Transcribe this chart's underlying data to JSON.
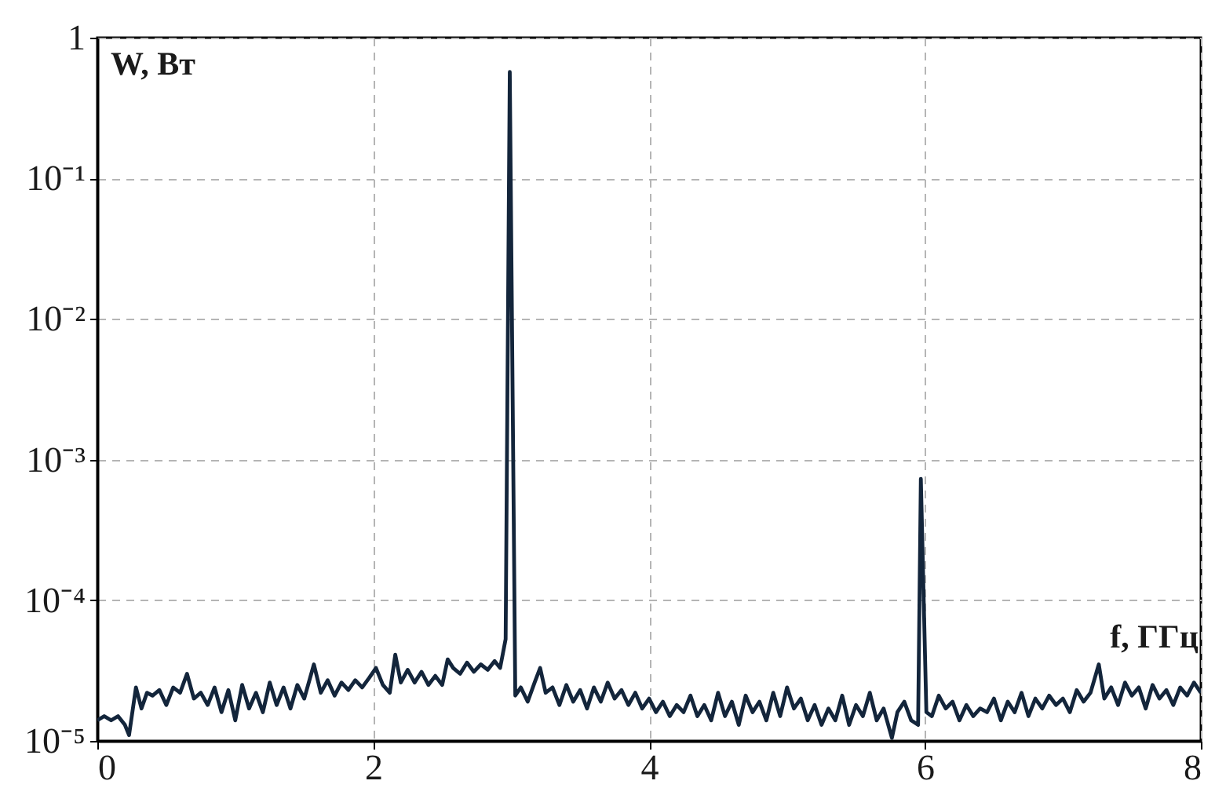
{
  "chart_data": {
    "type": "line",
    "xlabel": "f, ГГц",
    "ylabel": "W, Вт",
    "x": [
      0.0,
      0.05,
      0.1,
      0.15,
      0.2,
      0.23,
      0.28,
      0.32,
      0.36,
      0.4,
      0.45,
      0.5,
      0.55,
      0.6,
      0.65,
      0.7,
      0.75,
      0.8,
      0.85,
      0.9,
      0.95,
      1.0,
      1.05,
      1.1,
      1.15,
      1.2,
      1.25,
      1.3,
      1.35,
      1.4,
      1.45,
      1.5,
      1.57,
      1.62,
      1.67,
      1.72,
      1.77,
      1.82,
      1.87,
      1.92,
      1.97,
      2.02,
      2.07,
      2.12,
      2.16,
      2.2,
      2.25,
      2.3,
      2.35,
      2.4,
      2.45,
      2.5,
      2.54,
      2.58,
      2.63,
      2.68,
      2.73,
      2.78,
      2.83,
      2.88,
      2.92,
      2.96,
      2.99,
      3.03,
      3.07,
      3.12,
      3.17,
      3.21,
      3.25,
      3.3,
      3.35,
      3.4,
      3.45,
      3.5,
      3.55,
      3.6,
      3.65,
      3.7,
      3.75,
      3.8,
      3.85,
      3.9,
      3.95,
      4.0,
      4.05,
      4.1,
      4.15,
      4.2,
      4.25,
      4.3,
      4.35,
      4.4,
      4.45,
      4.5,
      4.55,
      4.6,
      4.65,
      4.7,
      4.75,
      4.8,
      4.85,
      4.9,
      4.95,
      5.0,
      5.05,
      5.1,
      5.15,
      5.2,
      5.25,
      5.3,
      5.35,
      5.4,
      5.45,
      5.5,
      5.55,
      5.6,
      5.65,
      5.7,
      5.76,
      5.8,
      5.85,
      5.9,
      5.95,
      5.97,
      6.01,
      6.05,
      6.1,
      6.15,
      6.2,
      6.25,
      6.3,
      6.35,
      6.4,
      6.45,
      6.5,
      6.55,
      6.6,
      6.65,
      6.7,
      6.75,
      6.8,
      6.85,
      6.9,
      6.95,
      7.0,
      7.05,
      7.1,
      7.15,
      7.2,
      7.26,
      7.3,
      7.35,
      7.4,
      7.45,
      7.5,
      7.55,
      7.6,
      7.65,
      7.7,
      7.75,
      7.8,
      7.85,
      7.9,
      7.95,
      8.0
    ],
    "series": [
      {
        "color": "#13253b",
        "values": [
          1.4e-05,
          1.5e-05,
          1.4e-05,
          1.5e-05,
          1.3e-05,
          1.1e-05,
          2.4e-05,
          1.7e-05,
          2.2e-05,
          2.1e-05,
          2.3e-05,
          1.8e-05,
          2.4e-05,
          2.2e-05,
          3e-05,
          2e-05,
          2.2e-05,
          1.8e-05,
          2.4e-05,
          1.6e-05,
          2.3e-05,
          1.4e-05,
          2.5e-05,
          1.7e-05,
          2.2e-05,
          1.6e-05,
          2.6e-05,
          1.8e-05,
          2.4e-05,
          1.7e-05,
          2.5e-05,
          2e-05,
          3.5e-05,
          2.2e-05,
          2.7e-05,
          2.1e-05,
          2.6e-05,
          2.3e-05,
          2.7e-05,
          2.4e-05,
          2.8e-05,
          3.3e-05,
          2.5e-05,
          2.2e-05,
          4.1e-05,
          2.6e-05,
          3.2e-05,
          2.6e-05,
          3.1e-05,
          2.5e-05,
          2.9e-05,
          2.5e-05,
          3.8e-05,
          3.3e-05,
          3e-05,
          3.6e-05,
          3.1e-05,
          3.5e-05,
          3.2e-05,
          3.7e-05,
          3.3e-05,
          5.3e-05,
          0.57,
          2.1e-05,
          2.4e-05,
          1.9e-05,
          2.6e-05,
          3.3e-05,
          2.2e-05,
          2.4e-05,
          1.8e-05,
          2.5e-05,
          1.9e-05,
          2.3e-05,
          1.7e-05,
          2.4e-05,
          1.9e-05,
          2.6e-05,
          2e-05,
          2.3e-05,
          1.8e-05,
          2.2e-05,
          1.7e-05,
          2e-05,
          1.6e-05,
          1.9e-05,
          1.5e-05,
          1.8e-05,
          1.6e-05,
          2.1e-05,
          1.5e-05,
          1.8e-05,
          1.4e-05,
          2.2e-05,
          1.5e-05,
          1.9e-05,
          1.3e-05,
          2.1e-05,
          1.6e-05,
          1.9e-05,
          1.4e-05,
          2.2e-05,
          1.5e-05,
          2.4e-05,
          1.7e-05,
          2e-05,
          1.4e-05,
          1.8e-05,
          1.3e-05,
          1.7e-05,
          1.4e-05,
          2.1e-05,
          1.3e-05,
          1.8e-05,
          1.5e-05,
          2.2e-05,
          1.4e-05,
          1.7e-05,
          1.05e-05,
          1.6e-05,
          1.9e-05,
          1.4e-05,
          1.3e-05,
          0.00073,
          1.6e-05,
          1.5e-05,
          2.1e-05,
          1.7e-05,
          1.9e-05,
          1.4e-05,
          1.8e-05,
          1.5e-05,
          1.7e-05,
          1.6e-05,
          2e-05,
          1.4e-05,
          1.9e-05,
          1.6e-05,
          2.2e-05,
          1.5e-05,
          2e-05,
          1.7e-05,
          2.1e-05,
          1.8e-05,
          2e-05,
          1.6e-05,
          2.3e-05,
          1.9e-05,
          2.2e-05,
          3.5e-05,
          2e-05,
          2.4e-05,
          1.8e-05,
          2.6e-05,
          2.1e-05,
          2.4e-05,
          1.7e-05,
          2.5e-05,
          2e-05,
          2.3e-05,
          1.8e-05,
          2.4e-05,
          2.1e-05,
          2.6e-05,
          2.2e-05
        ]
      }
    ],
    "xlim": [
      0,
      8
    ],
    "ylim": [
      1e-05,
      1
    ],
    "xticks": [
      0,
      2,
      4,
      6,
      8
    ],
    "yticks": [
      {
        "value": 1e-05,
        "label": "10⁻⁵"
      },
      {
        "value": 0.0001,
        "label": "10⁻⁴"
      },
      {
        "value": 0.001,
        "label": "10⁻³"
      },
      {
        "value": 0.01,
        "label": "10⁻²"
      },
      {
        "value": 0.1,
        "label": "10⁻¹"
      },
      1
    ],
    "log": "y",
    "grid": true,
    "line_style": "solid"
  }
}
